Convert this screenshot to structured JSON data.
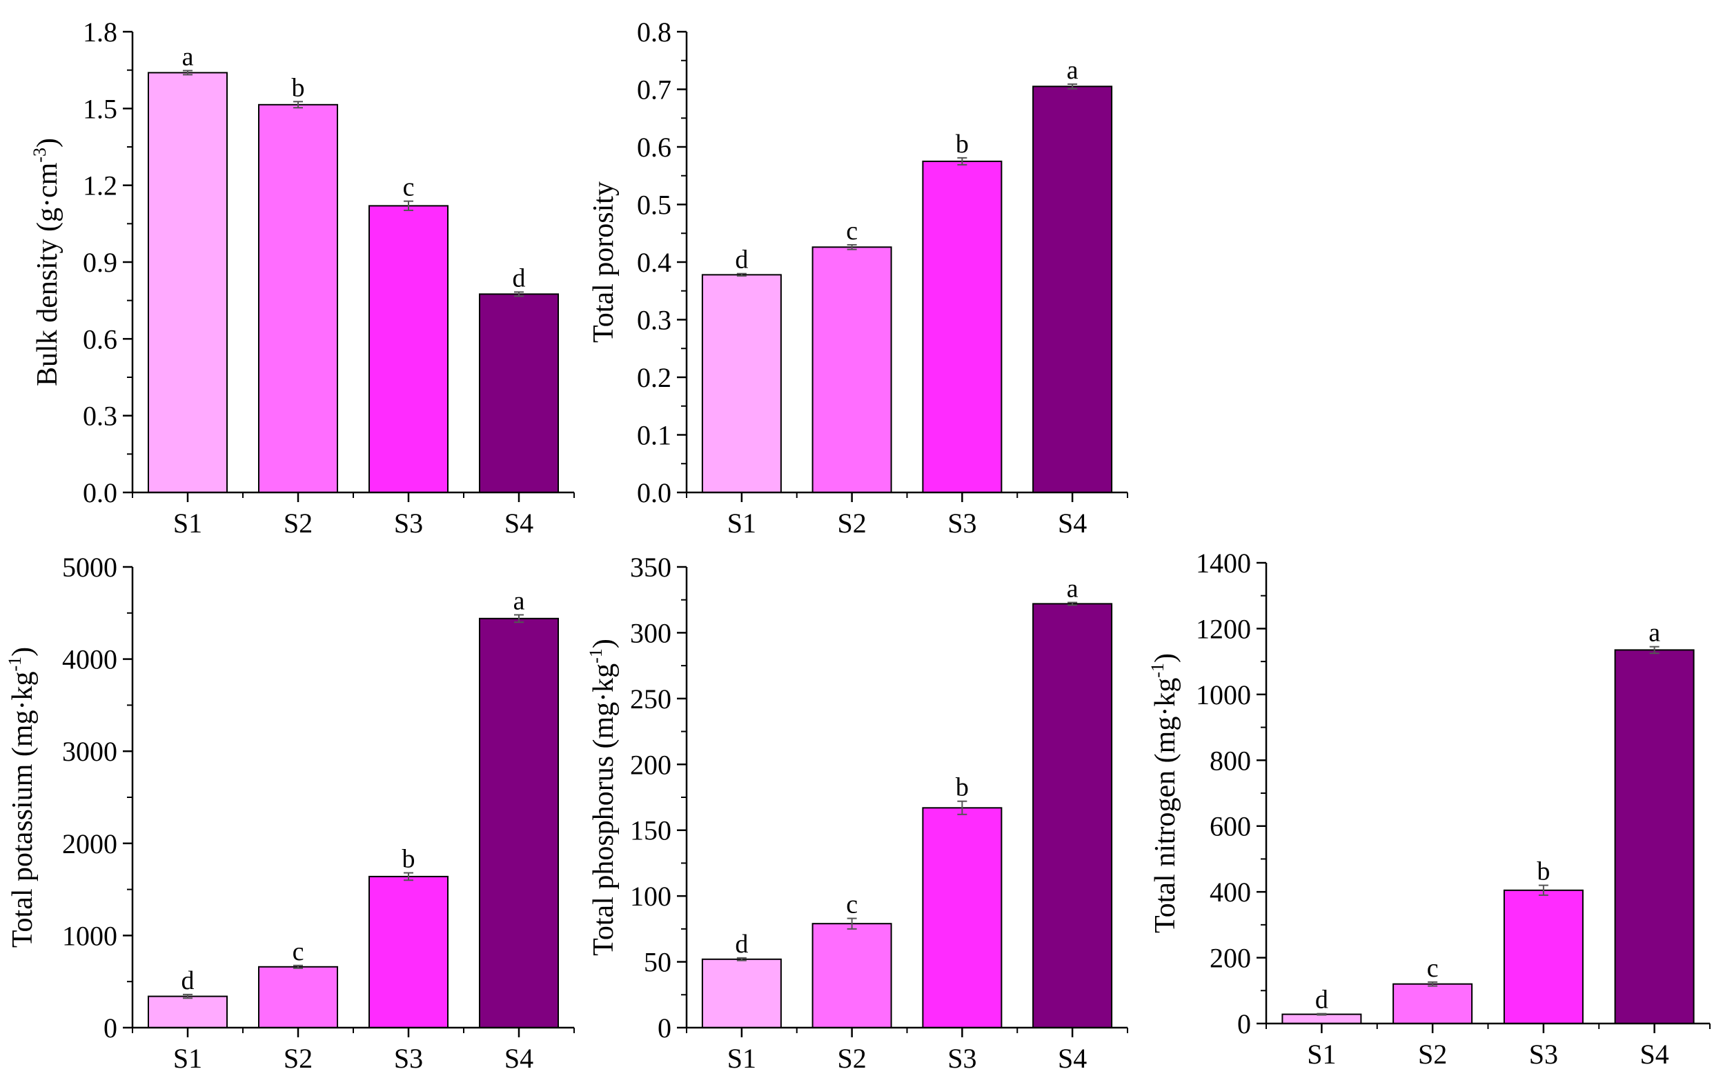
{
  "figure": {
    "colors": [
      "#ffaaff",
      "#ff6dff",
      "#ff2bff",
      "#800080"
    ]
  },
  "chart_data": [
    {
      "type": "bar",
      "title": "",
      "categories": [
        "S1",
        "S2",
        "S3",
        "S4"
      ],
      "values": [
        1.64,
        1.515,
        1.12,
        0.775
      ],
      "errors": [
        0.008,
        0.012,
        0.018,
        0.008
      ],
      "significance": [
        "a",
        "b",
        "c",
        "d"
      ],
      "ylabel": "Bulk density (g·cm",
      "ylabel_sup": "-3",
      "ylabel_end": ")",
      "ylim": [
        0,
        1.8
      ],
      "yticks": [
        "0.0",
        "0.3",
        "0.6",
        "0.9",
        "1.2",
        "1.5",
        "1.8"
      ],
      "ytick_values": [
        0,
        0.3,
        0.6,
        0.9,
        1.2,
        1.5,
        1.8
      ]
    },
    {
      "type": "bar",
      "title": "",
      "categories": [
        "S1",
        "S2",
        "S3",
        "S4"
      ],
      "values": [
        0.378,
        0.426,
        0.575,
        0.705
      ],
      "errors": [
        0.002,
        0.004,
        0.006,
        0.004
      ],
      "significance": [
        "d",
        "c",
        "b",
        "a"
      ],
      "ylabel": "Total porosity",
      "ylabel_sup": "",
      "ylabel_end": "",
      "ylim": [
        0,
        0.8
      ],
      "yticks": [
        "0.0",
        "0.1",
        "0.2",
        "0.3",
        "0.4",
        "0.5",
        "0.6",
        "0.7",
        "0.8"
      ],
      "ytick_values": [
        0,
        0.1,
        0.2,
        0.3,
        0.4,
        0.5,
        0.6,
        0.7,
        0.8
      ]
    },
    {
      "type": "bar",
      "title": "",
      "categories": [
        "S1",
        "S2",
        "S3",
        "S4"
      ],
      "values": [
        340,
        660,
        1640,
        4440
      ],
      "errors": [
        20,
        15,
        40,
        40
      ],
      "significance": [
        "d",
        "c",
        "b",
        "a"
      ],
      "ylabel": "Total potassium (mg·kg",
      "ylabel_sup": "-1",
      "ylabel_end": ")",
      "ylim": [
        0,
        5000
      ],
      "yticks": [
        "0",
        "1000",
        "2000",
        "3000",
        "4000",
        "5000"
      ],
      "ytick_values": [
        0,
        1000,
        2000,
        3000,
        4000,
        5000
      ]
    },
    {
      "type": "bar",
      "title": "",
      "categories": [
        "S1",
        "S2",
        "S3",
        "S4"
      ],
      "values": [
        52,
        79,
        167,
        322
      ],
      "errors": [
        1,
        4,
        5,
        1
      ],
      "significance": [
        "d",
        "c",
        "b",
        "a"
      ],
      "ylabel": "Total phosphorus (mg·kg",
      "ylabel_sup": "-1",
      "ylabel_end": ")",
      "ylim": [
        0,
        350
      ],
      "yticks": [
        "0",
        "50",
        "100",
        "150",
        "200",
        "250",
        "300",
        "350"
      ],
      "ytick_values": [
        0,
        50,
        100,
        150,
        200,
        250,
        300,
        350
      ]
    },
    {
      "type": "bar",
      "title": "",
      "categories": [
        "S1",
        "S2",
        "S3",
        "S4"
      ],
      "values": [
        28,
        120,
        405,
        1135
      ],
      "errors": [
        2,
        6,
        15,
        10
      ],
      "significance": [
        "d",
        "c",
        "b",
        "a"
      ],
      "ylabel": "Total nitrogen (mg·kg",
      "ylabel_sup": "-1",
      "ylabel_end": ")",
      "ylim": [
        0,
        1400
      ],
      "yticks": [
        "0",
        "200",
        "400",
        "600",
        "800",
        "1000",
        "1200",
        "1400"
      ],
      "ytick_values": [
        0,
        200,
        400,
        600,
        800,
        1000,
        1200,
        1400
      ]
    }
  ]
}
